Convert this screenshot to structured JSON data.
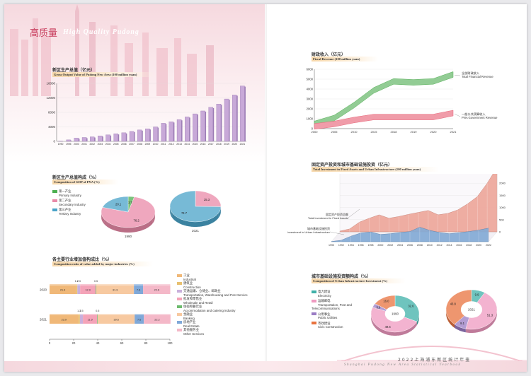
{
  "header": {
    "title_cn": "高质量",
    "title_en": "High Quality Pudong"
  },
  "footer": {
    "cn": "2022上海浦东新区统计年鉴",
    "en": "Shanghai Pudong New Area Statistical Yearbook"
  },
  "sections": {
    "gdp": {
      "cn": "新区生产总值（亿元）",
      "en": "Gross Output Value of Pudong New Area (100 million yuan)"
    },
    "gdp_comp": {
      "cn": "新区生产总值构成（%）",
      "en": "Composition of GDP of PNA (%)"
    },
    "industry": {
      "cn": "各主要行业增加值构成比（%）",
      "en": "Composition ratio of value added by major industries (%)"
    },
    "fiscal": {
      "cn": "财政收入（亿元）",
      "en": "Fiscal Revenue (100 million yuan)"
    },
    "invest": {
      "cn": "固定资产投资和城市基础设施投资（亿元）",
      "en": "Total Investment in Fixed Assets and Urban Infrastructure (100 million yuan)"
    },
    "urban": {
      "cn": "城市基础设施投资额构成（%）",
      "en": "Composition of Urban Infrastructure Investment (%)"
    }
  },
  "colors": {
    "accent": "#c8a9d8",
    "pink": "#e98aa8",
    "green": "#4caf50",
    "blue": "#4aa3c8"
  },
  "chart_data": [
    {
      "id": "gdp_bar",
      "type": "bar",
      "categories": [
        "1990",
        "1995",
        "2000",
        "2001",
        "2002",
        "2003",
        "2004",
        "2005",
        "2006",
        "2007",
        "2008",
        "2009",
        "2010",
        "2011",
        "2012",
        "2013",
        "2014",
        "2015",
        "2016",
        "2017",
        "2018",
        "2019",
        "2020",
        "2021"
      ],
      "values": [
        60,
        415,
        920,
        1080,
        1255,
        1510,
        1790,
        2110,
        2370,
        2750,
        3150,
        3480,
        4000,
        5000,
        5400,
        6000,
        6750,
        7600,
        8400,
        9400,
        10300,
        11700,
        12800,
        15300
      ],
      "ylim": [
        0,
        16000
      ],
      "yticks": [
        "0",
        "4000",
        "8000",
        "12000",
        "16000"
      ]
    },
    {
      "id": "gdp_pies",
      "type": "pie",
      "legend": [
        {
          "cn": "第一产业",
          "en": "Primary Industry",
          "color": "#4caf50"
        },
        {
          "cn": "第二产业",
          "en": "Secondary Industry",
          "color": "#e98aa8"
        },
        {
          "cn": "第三产业",
          "en": "Tertiary Industry",
          "color": "#4aa3c8"
        }
      ],
      "pies": [
        {
          "year": "1990",
          "values": [
            3.7,
            76.2,
            20.1
          ],
          "labels": [
            "3.7",
            "76.2",
            "20.1"
          ]
        },
        {
          "year": "2021",
          "values": [
            0.1,
            25.3,
            74.7
          ],
          "labels": [
            "0.1",
            "25.3",
            "74.7"
          ]
        }
      ]
    },
    {
      "id": "industry_bar",
      "type": "bar",
      "stacked": true,
      "categories": [
        "2020",
        "2021"
      ],
      "series": [
        {
          "cn": "工业",
          "en": "Industrial",
          "color": "#f0b878",
          "values": [
            21.9,
            23.9
          ]
        },
        {
          "cn": "建筑业",
          "en": "Construction",
          "color": "#e8c070",
          "values": [
            1.2,
            1.3
          ]
        },
        {
          "cn": "交通运输、仓储业、邮政业",
          "en": "Transportation, Warehousing and Post Service",
          "color": "#c9b0db",
          "values": [
            2.3,
            2.5
          ]
        },
        {
          "cn": "批发和零售业",
          "en": "Wholesale and Retail",
          "color": "#f4a3b8",
          "values": [
            12.9,
            11.9
          ]
        },
        {
          "cn": "住宿和餐饮业",
          "en": "Accommodation and catering industry",
          "color": "#6dbb6d",
          "values": [
            0.5,
            0.5
          ]
        },
        {
          "cn": "金融业",
          "en": "Banking",
          "color": "#f7c9a0",
          "values": [
            31.3,
            30.6
          ]
        },
        {
          "cn": "房地产业",
          "en": "Real Estate",
          "color": "#7fa8d8",
          "values": [
            7.6,
            7.6
          ]
        },
        {
          "cn": "其他服务业",
          "en": "Other Services",
          "color": "#f4b8c8",
          "values": [
            22.6,
            22.2
          ]
        }
      ],
      "labels": {
        "2020": [
          "21.9",
          "1.2",
          "2.3",
          "12.9",
          "0.5",
          "31.3",
          "7.6",
          "22.6"
        ],
        "2021": [
          "23.9",
          "1.3",
          "2.5",
          "11.9",
          "0.5",
          "30.6",
          "7.6",
          "22.2"
        ]
      },
      "xticks": [
        "0",
        "20",
        "40",
        "60",
        "80",
        "100"
      ]
    },
    {
      "id": "fiscal_line",
      "type": "area",
      "x": [
        "2000",
        "2005",
        "2010",
        "2015",
        "2018",
        "2019",
        "2020",
        "2021"
      ],
      "series": [
        {
          "cn": "全部财政收入",
          "en": "Total Financial Revenue",
          "color": "#58b05a",
          "values": [
            400,
            1000,
            2300,
            3800,
            4700,
            4600,
            4700,
            5400
          ]
        },
        {
          "cn": "一般公共预算收入",
          "en": "PNA Government Revenue",
          "color": "#e8677a",
          "values": [
            150,
            400,
            800,
            1100,
            1100,
            1100,
            1100,
            1500
          ]
        }
      ],
      "ylim": [
        0,
        6000
      ],
      "yticks": [
        "0",
        "1000",
        "2000",
        "3000",
        "4000",
        "5000",
        "6000"
      ]
    },
    {
      "id": "invest_3d",
      "type": "area",
      "x": [
        "1990",
        "1992",
        "1994",
        "1996",
        "1998",
        "2000",
        "2002",
        "2004",
        "2006",
        "2008",
        "2010",
        "2012",
        "2014",
        "2016",
        "2018",
        "2020",
        "2022"
      ],
      "series": [
        {
          "cn": "固定资产投资总额",
          "en": "Total Investment in Fixed Assets",
          "color": "#e88a7a",
          "values": [
            30,
            120,
            400,
            560,
            700,
            560,
            630,
            720,
            800,
            880,
            700,
            760,
            900,
            1150,
            1450,
            2000,
            2650
          ]
        },
        {
          "cn": "城市基础设施投资",
          "en": "Investment in Urban Infrastructure",
          "color": "#5b8fc8",
          "values": [
            10,
            60,
            230,
            360,
            400,
            300,
            330,
            380,
            420,
            600,
            470,
            380,
            330,
            370,
            420,
            480,
            560
          ]
        }
      ],
      "ylim": [
        0,
        2500
      ],
      "yticks": [
        "0",
        "500",
        "1000",
        "1500",
        "2000",
        "2500"
      ]
    },
    {
      "id": "urban_donut",
      "type": "pie",
      "legend": [
        {
          "cn": "电力建设",
          "en": "Electricity",
          "color": "#3fb0a8"
        },
        {
          "cn": "运输邮电",
          "en": "Transportation, Post and Telecommunications",
          "color": "#ef9ac0"
        },
        {
          "cn": "公用事业",
          "en": "Public Utilities",
          "color": "#9a7cc4"
        },
        {
          "cn": "市政建设",
          "en": "Civic Construction",
          "color": "#e8733f"
        }
      ],
      "pies": [
        {
          "year": "1990",
          "values": [
            32.6,
            49.6,
            3.6,
            16.0
          ],
          "labels": [
            "32.6",
            "49.6",
            "3.6",
            "16.0"
          ]
        },
        {
          "year": "2021",
          "values": [
            9.9,
            51.3,
            9.1,
            43.8
          ],
          "labels": [
            "9.9",
            "51.3",
            "9.1",
            "43.8"
          ]
        }
      ]
    }
  ]
}
